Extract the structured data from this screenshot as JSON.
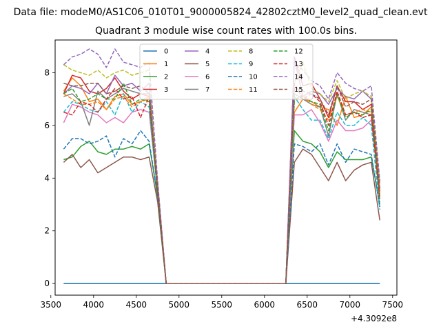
{
  "suptitle": "Data file: modeM0/AS1C06_010T01_9000005824_42802cztM0_level2_quad_clean.evt",
  "chart_data": {
    "type": "line",
    "title": "Quadrant 3 module wise count rates with 100.0s bins.",
    "xlabel": "",
    "ylabel": "",
    "x_offset_label": "+4.3092e8",
    "xlim": [
      3550,
      7550
    ],
    "ylim": [
      -0.44,
      9.24
    ],
    "xticks": [
      "3500",
      "4000",
      "4500",
      "5000",
      "5500",
      "6000",
      "6500",
      "7000",
      "7500"
    ],
    "yticks": [
      "0",
      "2",
      "4",
      "6",
      "8"
    ],
    "grid": false,
    "legend": {
      "placement": "top-center",
      "columns": 4
    },
    "x": [
      3650,
      3750,
      3850,
      3950,
      4050,
      4150,
      4250,
      4350,
      4450,
      4550,
      4650,
      4750,
      4850,
      4950,
      5050,
      5150,
      5250,
      5350,
      5450,
      5550,
      5650,
      5750,
      5850,
      5950,
      6050,
      6150,
      6250,
      6350,
      6450,
      6550,
      6650,
      6750,
      6850,
      6950,
      7050,
      7150,
      7250,
      7350
    ],
    "series": [
      {
        "name": "0",
        "color": "#1f77b4",
        "dash": "solid",
        "values": [
          0,
          0,
          0,
          0,
          0,
          0,
          0,
          0,
          0,
          0,
          0,
          0,
          0,
          0,
          0,
          0,
          0,
          0,
          0,
          0,
          0,
          0,
          0,
          0,
          0,
          0,
          0,
          0,
          0,
          0,
          0,
          0,
          0,
          0,
          0,
          0,
          0,
          0
        ]
      },
      {
        "name": "1",
        "color": "#ff7f0e",
        "dash": "solid",
        "values": [
          7.3,
          7.8,
          7.5,
          6.9,
          7.0,
          6.6,
          7.1,
          7.2,
          6.8,
          6.9,
          7.1,
          3.5,
          0,
          0,
          0,
          0,
          0,
          0,
          0,
          0,
          0,
          0,
          0,
          0,
          0,
          0,
          0,
          6.5,
          7.0,
          6.9,
          6.7,
          6.6,
          6.0,
          7.1,
          6.3,
          6.4,
          6.7,
          3.4
        ]
      },
      {
        "name": "2",
        "color": "#2ca02c",
        "dash": "solid",
        "values": [
          4.7,
          4.8,
          5.2,
          5.4,
          5.0,
          4.9,
          5.1,
          5.1,
          5.2,
          5.1,
          5.3,
          3.3,
          0,
          0,
          0,
          0,
          0,
          0,
          0,
          0,
          0,
          0,
          0,
          0,
          0,
          0,
          0,
          5.8,
          5.4,
          5.3,
          5.0,
          4.4,
          5.0,
          4.7,
          4.7,
          4.7,
          4.8,
          3.0
        ]
      },
      {
        "name": "3",
        "color": "#d62728",
        "dash": "solid",
        "values": [
          7.2,
          7.9,
          7.8,
          7.3,
          7.2,
          7.4,
          7.8,
          7.3,
          7.0,
          7.2,
          7.1,
          3.6,
          0,
          0,
          0,
          0,
          0,
          0,
          0,
          0,
          0,
          0,
          0,
          0,
          0,
          0,
          0,
          8.6,
          7.5,
          7.6,
          7.0,
          6.3,
          7.5,
          6.9,
          6.9,
          6.6,
          6.8,
          3.6
        ]
      },
      {
        "name": "4",
        "color": "#9467bd",
        "dash": "solid",
        "values": [
          7.2,
          7.5,
          7.4,
          7.2,
          7.6,
          7.2,
          7.9,
          7.5,
          7.6,
          7.3,
          7.6,
          3.8,
          0,
          0,
          0,
          0,
          0,
          0,
          0,
          0,
          0,
          0,
          0,
          0,
          0,
          0,
          0,
          8.5,
          7.1,
          7.3,
          7.2,
          6.8,
          7.4,
          7.1,
          7.0,
          7.3,
          7.0,
          3.8
        ]
      },
      {
        "name": "5",
        "color": "#8c564b",
        "dash": "solid",
        "values": [
          4.6,
          4.9,
          4.4,
          4.7,
          4.2,
          4.4,
          4.6,
          4.8,
          4.8,
          4.7,
          4.8,
          3.1,
          0,
          0,
          0,
          0,
          0,
          0,
          0,
          0,
          0,
          0,
          0,
          0,
          0,
          0,
          0,
          4.6,
          5.1,
          4.9,
          4.4,
          3.9,
          4.6,
          3.9,
          4.3,
          4.5,
          4.6,
          2.4
        ]
      },
      {
        "name": "6",
        "color": "#e377c2",
        "dash": "solid",
        "values": [
          6.1,
          6.8,
          6.7,
          6.5,
          6.4,
          6.1,
          6.3,
          6.1,
          6.5,
          6.6,
          6.5,
          3.5,
          0,
          0,
          0,
          0,
          0,
          0,
          0,
          0,
          0,
          0,
          0,
          0,
          0,
          0,
          0,
          6.4,
          6.4,
          6.6,
          6.1,
          5.4,
          6.2,
          5.8,
          5.8,
          5.9,
          6.2,
          3.6
        ]
      },
      {
        "name": "7",
        "color": "#7f7f7f",
        "dash": "solid",
        "values": [
          7.1,
          7.2,
          6.9,
          6.0,
          7.3,
          7.0,
          7.2,
          7.4,
          7.3,
          7.2,
          7.2,
          3.5,
          0,
          0,
          0,
          0,
          0,
          0,
          0,
          0,
          0,
          0,
          0,
          0,
          0,
          0,
          0,
          7.2,
          7.0,
          6.8,
          6.7,
          5.6,
          7.2,
          6.2,
          6.6,
          6.5,
          6.4,
          3.5
        ]
      },
      {
        "name": "8",
        "color": "#bcbd22",
        "dash": "dashed",
        "values": [
          8.3,
          8.1,
          8.0,
          7.9,
          8.1,
          7.8,
          8.0,
          8.1,
          7.9,
          8.0,
          8.1,
          3.7,
          0,
          0,
          0,
          0,
          0,
          0,
          0,
          0,
          0,
          0,
          0,
          0,
          0,
          0,
          0,
          7.6,
          8.4,
          7.4,
          7.2,
          6.9,
          7.7,
          7.0,
          7.2,
          7.3,
          7.1,
          3.8
        ]
      },
      {
        "name": "9",
        "color": "#17becf",
        "dash": "dashed",
        "values": [
          6.5,
          6.9,
          6.8,
          6.6,
          6.5,
          6.9,
          6.4,
          7.2,
          6.5,
          6.9,
          6.7,
          3.4,
          0,
          0,
          0,
          0,
          0,
          0,
          0,
          0,
          0,
          0,
          0,
          0,
          0,
          0,
          0,
          7.1,
          6.6,
          6.2,
          6.2,
          5.5,
          6.5,
          6.0,
          6.0,
          6.3,
          6.0,
          2.8
        ]
      },
      {
        "name": "10",
        "color": "#1f77b4",
        "dash": "dashed",
        "values": [
          5.1,
          5.5,
          5.5,
          5.3,
          5.4,
          5.6,
          4.8,
          5.5,
          5.3,
          5.8,
          5.4,
          3.3,
          0,
          0,
          0,
          0,
          0,
          0,
          0,
          0,
          0,
          0,
          0,
          0,
          0,
          0,
          0,
          5.3,
          5.2,
          5.0,
          5.3,
          4.5,
          5.3,
          4.6,
          5.1,
          5.0,
          4.9,
          2.9
        ]
      },
      {
        "name": "11",
        "color": "#ff7f0e",
        "dash": "dashed",
        "values": [
          7.2,
          7.0,
          6.8,
          6.8,
          6.9,
          6.6,
          7.0,
          7.1,
          6.7,
          6.9,
          7.0,
          3.5,
          0,
          0,
          0,
          0,
          0,
          0,
          0,
          0,
          0,
          0,
          0,
          0,
          0,
          0,
          0,
          6.9,
          7.2,
          6.8,
          6.6,
          6.2,
          7.1,
          6.4,
          6.5,
          6.6,
          6.5,
          3.3
        ]
      },
      {
        "name": "12",
        "color": "#2ca02c",
        "dash": "dashed",
        "values": [
          7.2,
          7.4,
          6.9,
          7.0,
          7.2,
          7.0,
          7.0,
          7.6,
          6.8,
          7.0,
          6.9,
          3.4,
          0,
          0,
          0,
          0,
          0,
          0,
          0,
          0,
          0,
          0,
          0,
          0,
          0,
          0,
          0,
          7.0,
          7.1,
          6.9,
          6.8,
          5.8,
          7.2,
          6.3,
          6.5,
          6.4,
          6.6,
          3.1
        ]
      },
      {
        "name": "13",
        "color": "#d62728",
        "dash": "dashed",
        "values": [
          6.5,
          6.4,
          6.9,
          6.8,
          6.5,
          7.0,
          7.4,
          7.0,
          7.1,
          6.3,
          7.1,
          3.5,
          0,
          0,
          0,
          0,
          0,
          0,
          0,
          0,
          0,
          0,
          0,
          0,
          0,
          0,
          0,
          7.6,
          7.0,
          7.2,
          6.9,
          6.0,
          7.3,
          6.4,
          6.5,
          6.3,
          6.4,
          3.2
        ]
      },
      {
        "name": "14",
        "color": "#9467bd",
        "dash": "dashed",
        "values": [
          8.3,
          8.6,
          8.7,
          8.9,
          8.7,
          8.2,
          8.9,
          8.4,
          8.3,
          8.2,
          8.4,
          3.9,
          0,
          0,
          0,
          0,
          0,
          0,
          0,
          0,
          0,
          0,
          0,
          0,
          0,
          0,
          0,
          8.4,
          8.1,
          7.7,
          7.5,
          7.0,
          8.0,
          7.6,
          7.4,
          7.3,
          7.5,
          3.9
        ]
      },
      {
        "name": "15",
        "color": "#8c564b",
        "dash": "dashed",
        "values": [
          7.6,
          7.5,
          7.5,
          7.6,
          7.6,
          7.2,
          7.3,
          7.5,
          7.4,
          7.5,
          7.2,
          3.6,
          0,
          0,
          0,
          0,
          0,
          0,
          0,
          0,
          0,
          0,
          0,
          0,
          0,
          0,
          0,
          7.4,
          7.3,
          7.2,
          7.0,
          6.4,
          7.5,
          6.7,
          6.9,
          6.8,
          7.0,
          3.5
        ]
      }
    ]
  }
}
